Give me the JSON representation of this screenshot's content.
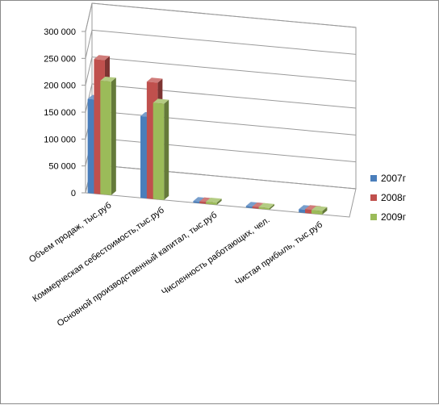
{
  "chart_data": {
    "type": "bar",
    "title": "",
    "xlabel": "",
    "ylabel": "",
    "ylim": [
      0,
      300000
    ],
    "y_ticks": [
      "0",
      "50 000",
      "100 000",
      "150 000",
      "200 000",
      "250 000",
      "300 000"
    ],
    "y_tick_values": [
      0,
      50000,
      100000,
      150000,
      200000,
      250000,
      300000
    ],
    "grid": true,
    "legend_position": "right",
    "categories": [
      "Объем продаж, тыс.руб",
      "Коммерческая себестоимость,тыс.руб",
      "Основной производственный  капитал, тыс.руб",
      "Численность работающих, чел.",
      "Чистая прибыль, тыс.руб"
    ],
    "series": [
      {
        "name": "2007г",
        "color": "#4a7ebb",
        "values": [
          175000,
          152000,
          3000,
          500,
          6000
        ]
      },
      {
        "name": "2008г",
        "color": "#c0504d",
        "values": [
          250000,
          217000,
          3500,
          500,
          7000
        ]
      },
      {
        "name": "2009г",
        "color": "#9bbb59",
        "values": [
          211000,
          179000,
          4000,
          500,
          6500
        ]
      }
    ]
  }
}
